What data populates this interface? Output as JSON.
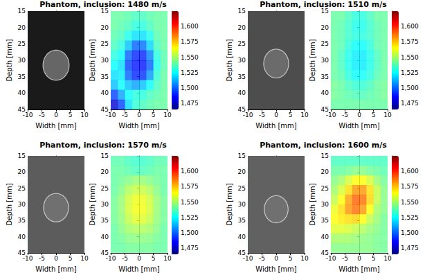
{
  "chart_data": [
    {
      "type": "image",
      "title": "Phantom, inclusion: 1480 m/s",
      "xlabel": "Width [mm]",
      "ylabel": "Depth [mm]",
      "xlim": [
        -10,
        10
      ],
      "ylim": [
        45,
        15
      ],
      "xticks": [
        -10,
        -5,
        0,
        5,
        10
      ],
      "yticks": [
        15,
        20,
        25,
        30,
        35,
        40,
        45
      ],
      "background_level": 0.1,
      "inclusion_center": [
        0,
        31.5
      ],
      "inclusion_radius": 4.6,
      "inclusion_level": 0.4
    },
    {
      "type": "heatmap",
      "xlabel": "Width [mm]",
      "ylabel": "Depth [mm]",
      "xlim": [
        -10,
        10
      ],
      "ylim": [
        45,
        15
      ],
      "xticks": [
        -10,
        -5,
        0,
        5,
        10
      ],
      "yticks": [
        15,
        20,
        25,
        30,
        35,
        40,
        45
      ],
      "x_edges": [
        -10,
        -7.5,
        -5,
        -2.5,
        0,
        2.5,
        5,
        7.5,
        10
      ],
      "y_edges": [
        15,
        18,
        21,
        24,
        27,
        30,
        33,
        36,
        39,
        42,
        45
      ],
      "cells": [
        [
          1540,
          1540,
          1538,
          1535,
          1535,
          1538,
          1540,
          1540
        ],
        [
          1540,
          1538,
          1535,
          1530,
          1530,
          1535,
          1540,
          1540
        ],
        [
          1538,
          1535,
          1528,
          1520,
          1520,
          1528,
          1538,
          1540
        ],
        [
          1535,
          1530,
          1515,
          1500,
          1502,
          1518,
          1535,
          1540
        ],
        [
          1530,
          1525,
          1500,
          1490,
          1490,
          1505,
          1530,
          1538
        ],
        [
          1525,
          1520,
          1495,
          1488,
          1488,
          1500,
          1528,
          1538
        ],
        [
          1520,
          1522,
          1500,
          1490,
          1492,
          1508,
          1532,
          1540
        ],
        [
          1515,
          1525,
          1515,
          1510,
          1515,
          1525,
          1535,
          1540
        ],
        [
          1495,
          1510,
          1525,
          1530,
          1530,
          1535,
          1538,
          1540
        ],
        [
          1478,
          1495,
          1520,
          1532,
          1535,
          1538,
          1540,
          1540
        ]
      ],
      "colorbar_range": [
        1465,
        1625
      ],
      "colorbar_ticks": [
        1475,
        1500,
        1525,
        1550,
        1575,
        1600
      ]
    },
    {
      "type": "image",
      "title": "Phantom, inclusion: 1510 m/s",
      "xlabel": "Width [mm]",
      "ylabel": "Depth [mm]",
      "xlim": [
        -10,
        10
      ],
      "ylim": [
        45,
        15
      ],
      "xticks": [
        -10,
        -5,
        0,
        5,
        10
      ],
      "yticks": [
        15,
        20,
        25,
        30,
        35,
        40,
        45
      ],
      "background_level": 0.3,
      "inclusion_center": [
        0,
        31
      ],
      "inclusion_radius": 4.4,
      "inclusion_level": 0.42
    },
    {
      "type": "heatmap",
      "xlabel": "Width [mm]",
      "ylabel": "Depth [mm]",
      "xlim": [
        -10,
        10
      ],
      "ylim": [
        45,
        15
      ],
      "xticks": [
        -10,
        -5,
        0,
        5,
        10
      ],
      "yticks": [
        15,
        20,
        25,
        30,
        35,
        40,
        45
      ],
      "x_edges": [
        -10,
        -7.5,
        -5,
        -2.5,
        0,
        2.5,
        5,
        7.5,
        10
      ],
      "y_edges": [
        15,
        18,
        21,
        24,
        27,
        30,
        33,
        36,
        39,
        42,
        45
      ],
      "cells": [
        [
          1540,
          1540,
          1535,
          1530,
          1530,
          1535,
          1540,
          1540
        ],
        [
          1540,
          1538,
          1533,
          1528,
          1528,
          1533,
          1538,
          1540
        ],
        [
          1540,
          1538,
          1533,
          1530,
          1530,
          1533,
          1538,
          1540
        ],
        [
          1540,
          1538,
          1530,
          1525,
          1525,
          1530,
          1538,
          1540
        ],
        [
          1540,
          1535,
          1528,
          1522,
          1522,
          1528,
          1535,
          1540
        ],
        [
          1540,
          1535,
          1528,
          1522,
          1522,
          1528,
          1535,
          1540
        ],
        [
          1540,
          1537,
          1530,
          1525,
          1526,
          1530,
          1537,
          1540
        ],
        [
          1542,
          1540,
          1535,
          1532,
          1532,
          1535,
          1540,
          1542
        ],
        [
          1542,
          1540,
          1538,
          1536,
          1536,
          1538,
          1540,
          1542
        ],
        [
          1540,
          1540,
          1540,
          1540,
          1540,
          1540,
          1540,
          1540
        ]
      ],
      "colorbar_range": [
        1465,
        1625
      ],
      "colorbar_ticks": [
        1475,
        1500,
        1525,
        1550,
        1575,
        1600
      ]
    },
    {
      "type": "image",
      "title": "Phantom, inclusion: 1570 m/s",
      "xlabel": "Width [mm]",
      "ylabel": "Depth [mm]",
      "xlim": [
        -10,
        10
      ],
      "ylim": [
        45,
        15
      ],
      "xticks": [
        -10,
        -5,
        0,
        5,
        10
      ],
      "yticks": [
        15,
        20,
        25,
        30,
        35,
        40,
        45
      ],
      "background_level": 0.36,
      "inclusion_center": [
        0,
        31
      ],
      "inclusion_radius": 4.4,
      "inclusion_level": 0.44
    },
    {
      "type": "heatmap",
      "xlabel": "Width [mm]",
      "ylabel": "Depth [mm]",
      "xlim": [
        -10,
        10
      ],
      "ylim": [
        45,
        15
      ],
      "xticks": [
        -10,
        -5,
        0,
        5,
        10
      ],
      "yticks": [
        15,
        20,
        25,
        30,
        35,
        40,
        45
      ],
      "x_edges": [
        -10,
        -7.5,
        -5,
        -2.5,
        0,
        2.5,
        5,
        7.5,
        10
      ],
      "y_edges": [
        15,
        18,
        21,
        24,
        27,
        30,
        33,
        36,
        39,
        42,
        45
      ],
      "cells": [
        [
          1538,
          1538,
          1535,
          1533,
          1533,
          1535,
          1538,
          1538
        ],
        [
          1540,
          1540,
          1538,
          1536,
          1536,
          1538,
          1540,
          1540
        ],
        [
          1540,
          1542,
          1545,
          1548,
          1548,
          1545,
          1542,
          1540
        ],
        [
          1540,
          1545,
          1552,
          1556,
          1556,
          1552,
          1545,
          1540
        ],
        [
          1542,
          1548,
          1557,
          1562,
          1562,
          1557,
          1548,
          1542
        ],
        [
          1542,
          1548,
          1558,
          1563,
          1563,
          1558,
          1548,
          1542
        ],
        [
          1542,
          1547,
          1555,
          1560,
          1560,
          1555,
          1547,
          1542
        ],
        [
          1540,
          1545,
          1550,
          1552,
          1552,
          1550,
          1545,
          1540
        ],
        [
          1540,
          1542,
          1545,
          1546,
          1546,
          1545,
          1542,
          1540
        ],
        [
          1540,
          1540,
          1542,
          1542,
          1542,
          1542,
          1540,
          1540
        ]
      ],
      "colorbar_range": [
        1465,
        1625
      ],
      "colorbar_ticks": [
        1475,
        1500,
        1525,
        1550,
        1575,
        1600
      ]
    },
    {
      "type": "image",
      "title": "Phantom, inclusion: 1600 m/s",
      "xlabel": "Width [mm]",
      "ylabel": "Depth [mm]",
      "xlim": [
        -10,
        10
      ],
      "ylim": [
        45,
        15
      ],
      "xticks": [
        -10,
        -5,
        0,
        5,
        10
      ],
      "yticks": [
        15,
        20,
        25,
        30,
        35,
        40,
        45
      ],
      "background_level": 0.38,
      "inclusion_center": [
        0,
        31.5
      ],
      "inclusion_radius": 4.2,
      "inclusion_level": 0.44
    },
    {
      "type": "heatmap",
      "xlabel": "Width [mm]",
      "ylabel": "Depth [mm]",
      "xlim": [
        -10,
        10
      ],
      "ylim": [
        45,
        15
      ],
      "xticks": [
        -10,
        -5,
        0,
        5,
        10
      ],
      "yticks": [
        15,
        20,
        25,
        30,
        35,
        40,
        45
      ],
      "x_edges": [
        -10,
        -7.5,
        -5,
        -2.5,
        0,
        2.5,
        5,
        7.5,
        10
      ],
      "y_edges": [
        15,
        18,
        21,
        24,
        27,
        30,
        33,
        36,
        39,
        42,
        45
      ],
      "cells": [
        [
          1535,
          1535,
          1535,
          1535,
          1535,
          1535,
          1535,
          1535
        ],
        [
          1540,
          1540,
          1542,
          1545,
          1545,
          1542,
          1540,
          1538
        ],
        [
          1545,
          1550,
          1558,
          1565,
          1565,
          1558,
          1548,
          1542
        ],
        [
          1550,
          1558,
          1570,
          1582,
          1582,
          1570,
          1555,
          1545
        ],
        [
          1555,
          1565,
          1580,
          1590,
          1588,
          1572,
          1555,
          1545
        ],
        [
          1562,
          1570,
          1582,
          1588,
          1582,
          1565,
          1550,
          1545
        ],
        [
          1565,
          1568,
          1570,
          1572,
          1565,
          1555,
          1548,
          1542
        ],
        [
          1560,
          1560,
          1558,
          1555,
          1552,
          1548,
          1545,
          1542
        ],
        [
          1550,
          1550,
          1550,
          1548,
          1546,
          1545,
          1543,
          1542
        ],
        [
          1545,
          1545,
          1545,
          1545,
          1545,
          1545,
          1543,
          1542
        ]
      ],
      "colorbar_range": [
        1465,
        1625
      ],
      "colorbar_ticks": [
        1475,
        1500,
        1525,
        1550,
        1575,
        1600
      ]
    }
  ]
}
